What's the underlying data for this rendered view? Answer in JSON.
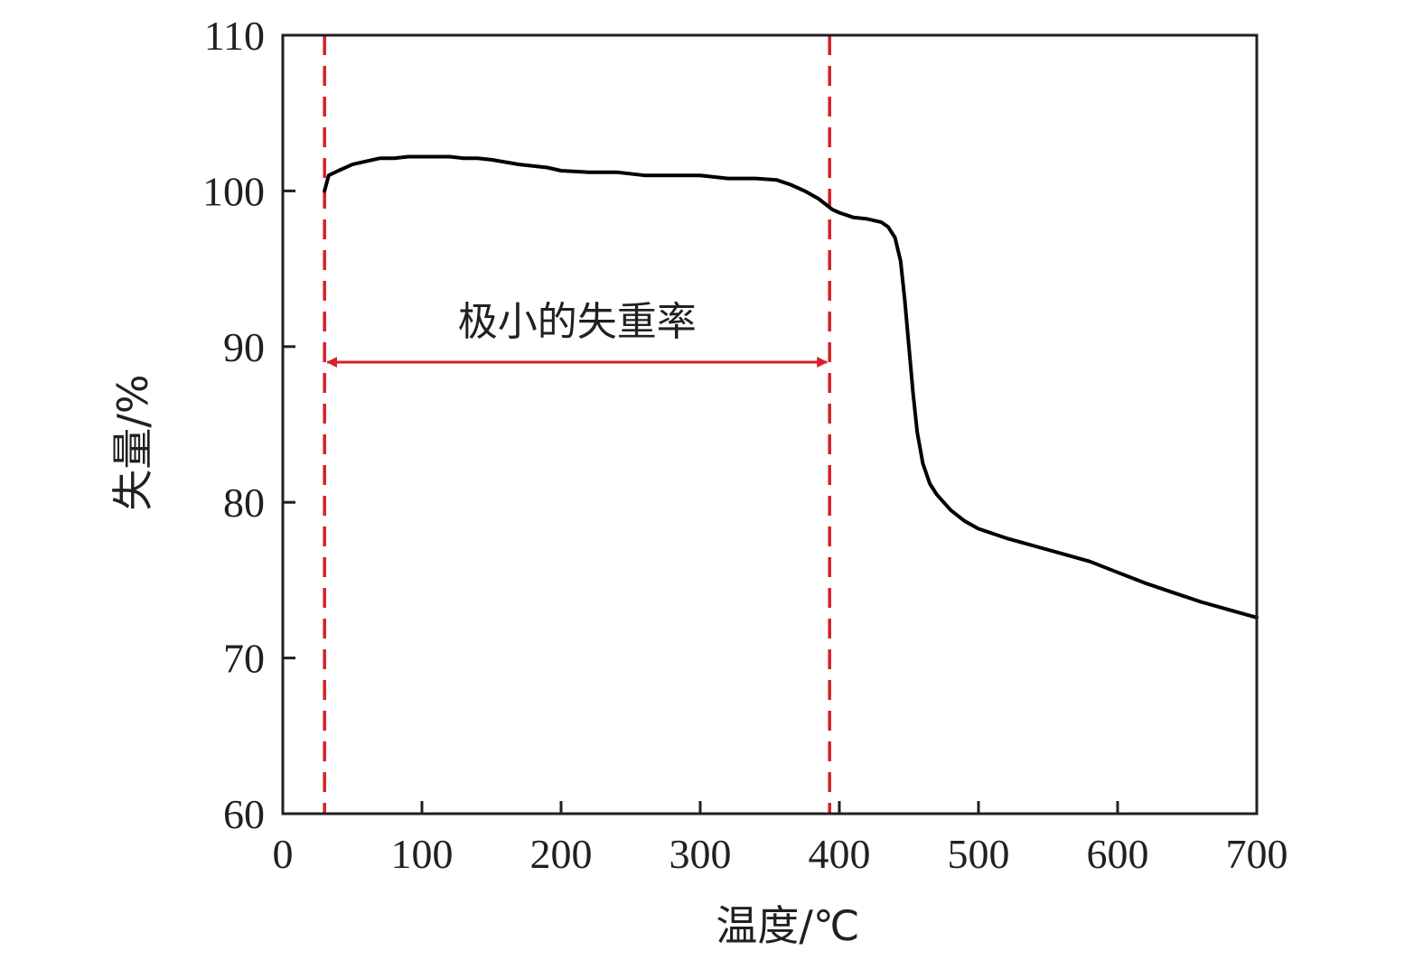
{
  "chart_data": {
    "type": "line",
    "xlabel": "温度/℃",
    "ylabel": "失量/%",
    "xlim": [
      0,
      700
    ],
    "ylim": [
      60,
      110
    ],
    "x_ticks": [
      0,
      100,
      200,
      300,
      400,
      500,
      600,
      700
    ],
    "y_ticks": [
      60,
      70,
      80,
      90,
      100,
      110
    ],
    "grid": false,
    "series": [
      {
        "line_color": "#000000",
        "points": [
          [
            30,
            100.0
          ],
          [
            33,
            101.0
          ],
          [
            40,
            101.3
          ],
          [
            50,
            101.7
          ],
          [
            60,
            101.9
          ],
          [
            70,
            102.1
          ],
          [
            80,
            102.1
          ],
          [
            90,
            102.2
          ],
          [
            100,
            102.2
          ],
          [
            110,
            102.2
          ],
          [
            120,
            102.2
          ],
          [
            130,
            102.1
          ],
          [
            140,
            102.1
          ],
          [
            150,
            102.0
          ],
          [
            170,
            101.7
          ],
          [
            190,
            101.5
          ],
          [
            200,
            101.3
          ],
          [
            220,
            101.2
          ],
          [
            240,
            101.2
          ],
          [
            260,
            101.0
          ],
          [
            280,
            101.0
          ],
          [
            300,
            101.0
          ],
          [
            320,
            100.8
          ],
          [
            340,
            100.8
          ],
          [
            355,
            100.7
          ],
          [
            365,
            100.4
          ],
          [
            375,
            100.0
          ],
          [
            385,
            99.5
          ],
          [
            395,
            98.8
          ],
          [
            400,
            98.6
          ],
          [
            410,
            98.3
          ],
          [
            420,
            98.2
          ],
          [
            430,
            98.0
          ],
          [
            435,
            97.7
          ],
          [
            440,
            97.0
          ],
          [
            444,
            95.5
          ],
          [
            447,
            93.0
          ],
          [
            450,
            90.0
          ],
          [
            453,
            87.0
          ],
          [
            456,
            84.5
          ],
          [
            460,
            82.5
          ],
          [
            465,
            81.2
          ],
          [
            470,
            80.5
          ],
          [
            480,
            79.5
          ],
          [
            490,
            78.8
          ],
          [
            500,
            78.3
          ],
          [
            520,
            77.7
          ],
          [
            540,
            77.2
          ],
          [
            560,
            76.7
          ],
          [
            580,
            76.2
          ],
          [
            600,
            75.5
          ],
          [
            620,
            74.8
          ],
          [
            640,
            74.2
          ],
          [
            660,
            73.6
          ],
          [
            680,
            73.1
          ],
          [
            700,
            72.6
          ]
        ]
      }
    ],
    "reference_lines": [
      {
        "axis": "x",
        "value": 30,
        "style": "dashed",
        "color": "#d62027"
      },
      {
        "axis": "x",
        "value": 393,
        "style": "dashed",
        "color": "#d62027"
      }
    ],
    "annotations": [
      {
        "text": "极小的失重率",
        "type": "double-arrow",
        "x_from": 30,
        "x_to": 393,
        "y": 89.0,
        "color": "#d62027"
      }
    ]
  }
}
